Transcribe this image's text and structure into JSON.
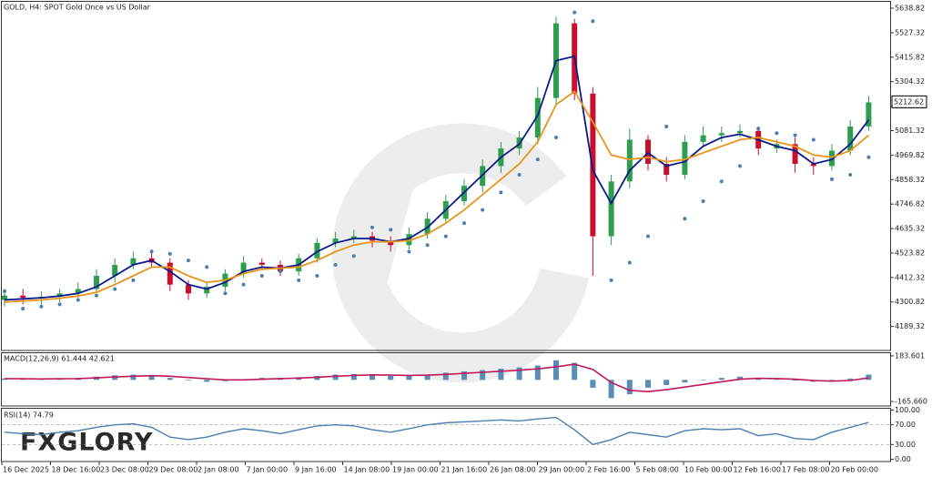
{
  "chart_data": [
    {
      "type": "candlestick",
      "title": "GOLD, H4:  SPOT Gold Once vs US Dollar",
      "open": [
        4310,
        4330,
        4320,
        4325,
        4340,
        4360,
        4420,
        4470,
        4500,
        4480,
        4380,
        4340,
        4370,
        4430,
        4480,
        4470,
        4440,
        4500,
        4570,
        4590,
        4600,
        4580,
        4560,
        4610,
        4680,
        4760,
        4830,
        4920,
        5000,
        5050,
        5230,
        5570,
        5250,
        4600,
        4850,
        5040,
        4930,
        4880,
        5030,
        5060,
        5070,
        5080,
        5000,
        5020,
        4930,
        4920,
        4990,
        5100
      ],
      "high": [
        4360,
        4360,
        4350,
        4360,
        4390,
        4450,
        4500,
        4530,
        4540,
        4500,
        4400,
        4390,
        4450,
        4510,
        4500,
        4490,
        4520,
        4590,
        4620,
        4630,
        4620,
        4600,
        4640,
        4710,
        4790,
        4860,
        4950,
        5030,
        5080,
        5280,
        5600,
        5590,
        5280,
        4880,
        5090,
        5060,
        4960,
        5060,
        5100,
        5100,
        5110,
        5100,
        5040,
        5050,
        4960,
        5020,
        5130,
        5240
      ],
      "low": [
        4280,
        4290,
        4290,
        4300,
        4320,
        4340,
        4390,
        4450,
        4460,
        4350,
        4310,
        4320,
        4350,
        4410,
        4450,
        4420,
        4420,
        4480,
        4550,
        4570,
        4550,
        4530,
        4540,
        4590,
        4660,
        4740,
        4800,
        4890,
        4970,
        5020,
        5200,
        5220,
        4420,
        4560,
        4820,
        4900,
        4850,
        4860,
        5010,
        5030,
        5050,
        4970,
        4980,
        4890,
        4880,
        4900,
        4970,
        5080
      ],
      "close": [
        4330,
        4320,
        4325,
        4340,
        4360,
        4420,
        4470,
        4500,
        4480,
        4380,
        4340,
        4370,
        4430,
        4480,
        4470,
        4440,
        4500,
        4570,
        4590,
        4600,
        4580,
        4560,
        4610,
        4680,
        4760,
        4830,
        4920,
        5000,
        5050,
        5230,
        5570,
        5250,
        4600,
        4850,
        5040,
        4930,
        4880,
        5030,
        5060,
        5070,
        5080,
        5000,
        5020,
        4930,
        4920,
        4990,
        5100,
        5210
      ],
      "up_color": "#2e9d4f",
      "down_color": "#c8102e",
      "overlays": [
        {
          "type": "line",
          "color": "#0a1a8a",
          "values": [
            4310,
            4315,
            4320,
            4328,
            4340,
            4370,
            4420,
            4470,
            4490,
            4440,
            4380,
            4360,
            4390,
            4440,
            4460,
            4455,
            4470,
            4530,
            4570,
            4590,
            4590,
            4575,
            4590,
            4640,
            4720,
            4800,
            4880,
            4960,
            5020,
            5150,
            5400,
            5420,
            4900,
            4750,
            4900,
            4980,
            4920,
            4940,
            5010,
            5050,
            5065,
            5040,
            5010,
            4990,
            4930,
            4950,
            5020,
            5130
          ]
        },
        {
          "type": "line",
          "color": "#e8951c",
          "values": [
            4300,
            4305,
            4310,
            4318,
            4328,
            4345,
            4380,
            4420,
            4460,
            4460,
            4420,
            4390,
            4400,
            4430,
            4450,
            4455,
            4460,
            4490,
            4530,
            4560,
            4575,
            4575,
            4580,
            4610,
            4660,
            4720,
            4790,
            4860,
            4930,
            5030,
            5200,
            5260,
            5120,
            4970,
            4950,
            4960,
            4940,
            4950,
            4980,
            5010,
            5040,
            5050,
            5030,
            5010,
            4970,
            4960,
            4990,
            5060
          ]
        },
        {
          "type": "dots",
          "color": "#4a7fb0",
          "values": [
            4350,
            4270,
            4280,
            4290,
            4310,
            4330,
            4360,
            4400,
            4530,
            4520,
            4490,
            4460,
            4340,
            4380,
            4420,
            4440,
            4400,
            4420,
            4470,
            4510,
            4640,
            4630,
            4530,
            4560,
            4600,
            4660,
            4720,
            4800,
            4880,
            4950,
            5050,
            5620,
            5580,
            4400,
            4480,
            4600,
            5100,
            4680,
            4760,
            4850,
            4920,
            5090,
            5070,
            5060,
            5040,
            4860,
            4880,
            4960
          ]
        }
      ],
      "current_price": 5212.62,
      "ylim": [
        4080,
        5668
      ],
      "yticks": [
        5638.82,
        5527.32,
        5415.82,
        5304.32,
        5192.82,
        5081.32,
        4969.82,
        4858.32,
        4746.82,
        4635.32,
        4523.82,
        4412.32,
        4300.82,
        4189.32
      ],
      "x_labels": [
        "16 Dec 2025",
        "18 Dec 16:00",
        "23 Dec 08:00",
        "29 Dec 08:00",
        "2 Jan 08:00",
        "7 Jan 00:00",
        "9 Jan 16:00",
        "14 Jan 08:00",
        "19 Jan 00:00",
        "21 Jan 16:00",
        "26 Jan 08:00",
        "29 Jan 00:00",
        "2 Feb 16:00",
        "5 Feb 08:00",
        "10 Feb 00:00",
        "12 Feb 16:00",
        "17 Feb 08:00",
        "20 Feb 00:00"
      ],
      "brand": "FXGLORY"
    },
    {
      "type": "macd",
      "title": "MACD(12,26,9) 61.444 42.621",
      "series": [
        {
          "type": "bar",
          "color": "#5a8cb8",
          "values": [
            10,
            5,
            5,
            10,
            15,
            25,
            35,
            40,
            35,
            15,
            -5,
            -15,
            -10,
            5,
            15,
            15,
            20,
            30,
            40,
            45,
            40,
            30,
            30,
            40,
            55,
            65,
            75,
            85,
            95,
            110,
            150,
            130,
            -60,
            -140,
            -110,
            -60,
            -40,
            -20,
            0,
            15,
            25,
            15,
            5,
            -5,
            -15,
            -10,
            10,
            40
          ]
        },
        {
          "type": "line",
          "color": "#c2185b",
          "values": [
            10,
            8,
            7,
            8,
            10,
            15,
            22,
            28,
            32,
            28,
            18,
            8,
            0,
            0,
            5,
            10,
            14,
            20,
            28,
            34,
            38,
            36,
            34,
            36,
            42,
            50,
            58,
            66,
            74,
            84,
            100,
            120,
            80,
            -20,
            -80,
            -90,
            -75,
            -55,
            -35,
            -15,
            5,
            12,
            10,
            5,
            -5,
            -10,
            -5,
            15
          ]
        }
      ],
      "ylim": [
        -200,
        204
      ],
      "yticks": [
        183.601,
        {
          "value": -165.66,
          "label": "-165.660"
        }
      ]
    },
    {
      "type": "rsi",
      "title": "RSI(14) 74.79",
      "color": "#4a7fb0",
      "values": [
        55,
        52,
        50,
        55,
        58,
        65,
        70,
        72,
        65,
        45,
        40,
        45,
        55,
        62,
        58,
        52,
        60,
        68,
        70,
        68,
        60,
        55,
        62,
        70,
        74,
        76,
        78,
        80,
        78,
        82,
        85,
        60,
        30,
        40,
        55,
        50,
        45,
        58,
        62,
        60,
        62,
        48,
        52,
        42,
        40,
        55,
        65,
        75
      ],
      "levels": [
        70,
        30
      ],
      "ylim": [
        -4.5,
        102.7
      ],
      "yticks": [
        {
          "value": 100,
          "label": "100.00"
        },
        {
          "value": 70,
          "label": "70.00"
        },
        {
          "value": 30,
          "label": "30.00"
        },
        {
          "value": 0,
          "label": "0.00"
        }
      ]
    }
  ]
}
